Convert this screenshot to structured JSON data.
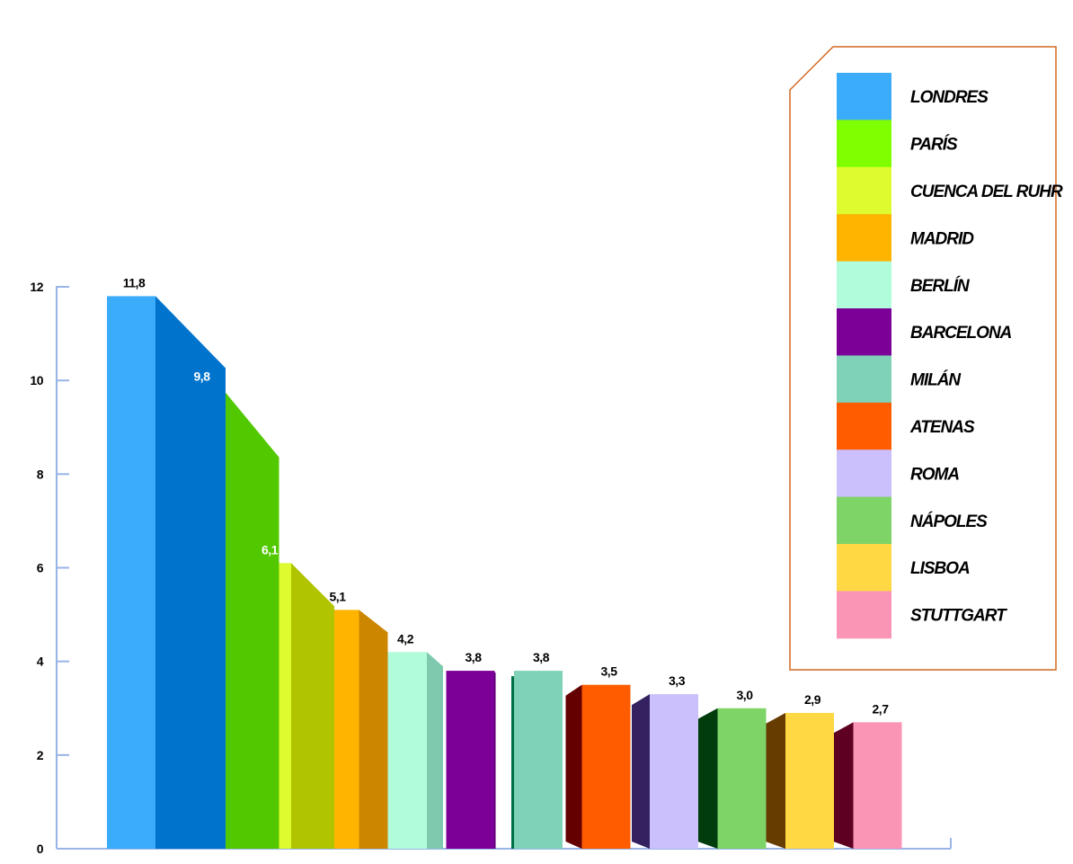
{
  "chart_data": {
    "type": "bar",
    "categories": [
      "LONDRES",
      "PARÍS",
      "CUENCA DEL RUHR",
      "MADRID",
      "BERLÍN",
      "BARCELONA",
      "MILÁN",
      "ATENAS",
      "ROMA",
      "NÁPOLES",
      "LISBOA",
      "STUTTGART"
    ],
    "values": [
      11.8,
      9.8,
      6.1,
      5.1,
      4.2,
      3.8,
      3.8,
      3.5,
      3.3,
      3.0,
      2.9,
      2.7
    ],
    "value_labels": [
      "11,8",
      "9,8",
      "6,1",
      "5,1",
      "4,2",
      "3,8",
      "3,8",
      "3,5",
      "3,3",
      "3,0",
      "2,9",
      "2,7"
    ],
    "front_colors": [
      "#3aacfa",
      "#80ff00",
      "#ddfb2f",
      "#ffb400",
      "#b1fcdb",
      "#7c0097",
      "#7fd2b7",
      "#ff5c00",
      "#cbbffc",
      "#7ed466",
      "#ffd844",
      "#fa95b5"
    ],
    "side_colors": [
      "#0074cc",
      "#52c800",
      "#b0c500",
      "#cc8600",
      "#7fcaaf",
      "#520068",
      "#006f45",
      "#640000",
      "#33225f",
      "#003c0c",
      "#673c00",
      "#5e0021"
    ],
    "value_label_colors": [
      "#000000",
      "#ffffff",
      "#ffffff",
      "#000000",
      "#000000",
      "#000000",
      "#000000",
      "#000000",
      "#000000",
      "#000000",
      "#000000",
      "#000000"
    ],
    "title": "",
    "xlabel": "",
    "ylabel": "",
    "ylim": [
      0,
      12
    ],
    "yticks": [
      0,
      2,
      4,
      6,
      8,
      10,
      12
    ],
    "grid": false,
    "legend_position": "top-right",
    "axis_color": "#98b4e8",
    "legend_border_color": "#d2691e"
  }
}
